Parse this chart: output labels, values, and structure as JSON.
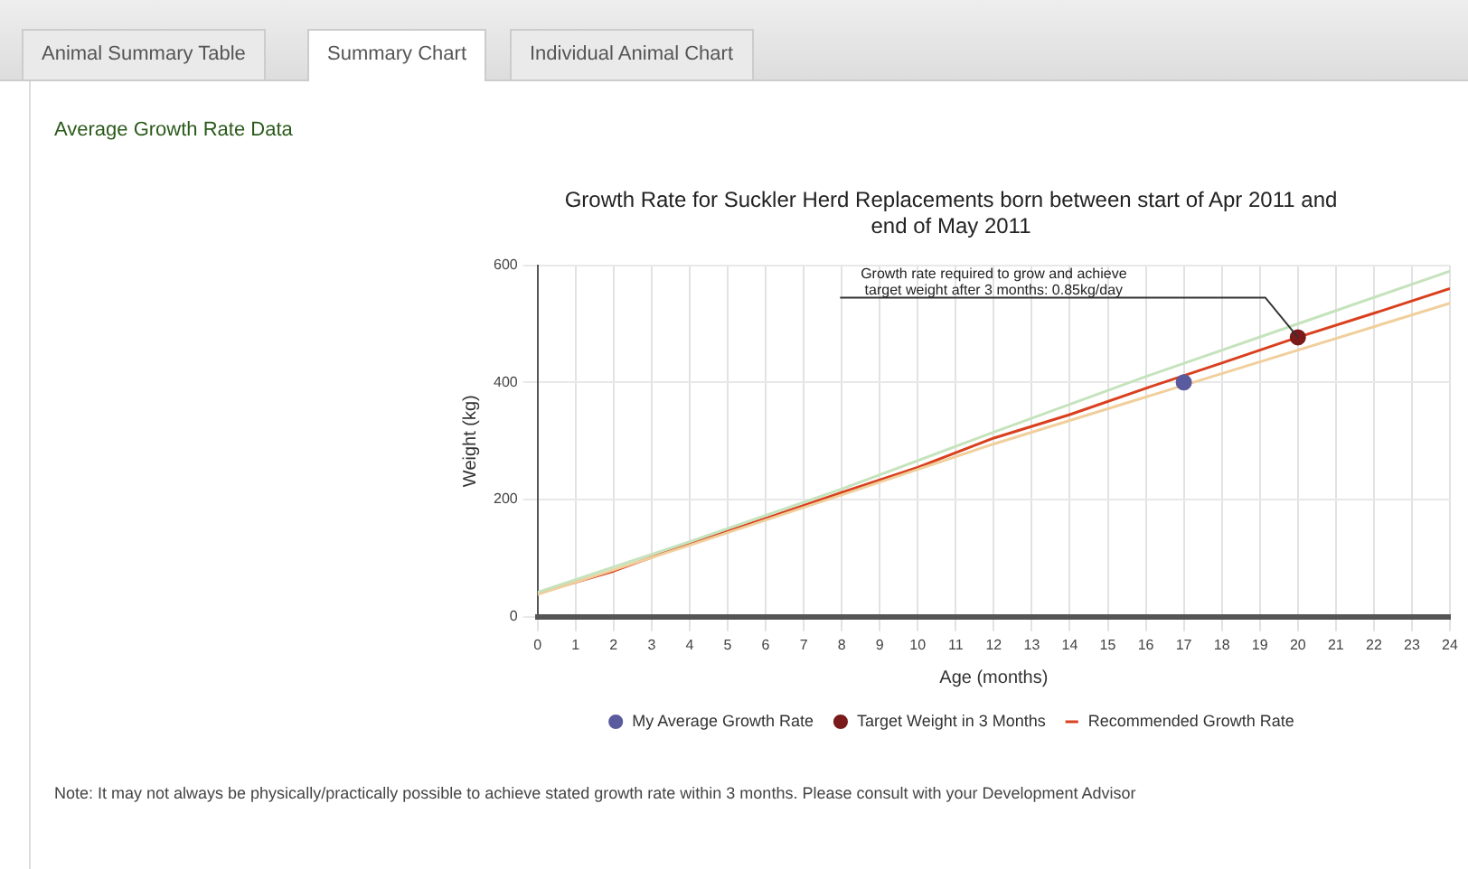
{
  "chart_data": {
    "type": "line",
    "title": [
      "Growth Rate for Suckler Herd Replacements born between start of Apr 2011 and",
      "end of May 2011"
    ],
    "xlabel": "Age (months)",
    "ylabel": "Weight (kg)",
    "xlim": [
      0,
      24
    ],
    "xticks": [
      0,
      1,
      2,
      3,
      4,
      5,
      6,
      7,
      8,
      9,
      10,
      11,
      12,
      13,
      14,
      15,
      16,
      17,
      18,
      19,
      20,
      21,
      22,
      23,
      24
    ],
    "ylim": [
      0,
      600
    ],
    "yticks": [
      0,
      200,
      400,
      600
    ],
    "grid": true,
    "legend": "bottom",
    "series": [
      {
        "type": "scatter",
        "name": "My Average Growth Rate",
        "color": "#5a5a9e",
        "x": [
          17
        ],
        "values": [
          400
        ],
        "marker": "circle"
      },
      {
        "type": "scatter",
        "name": "Target Weight in 3 Months",
        "color": "#7a1a1a",
        "x": [
          20
        ],
        "values": [
          477
        ],
        "marker": "circle"
      },
      {
        "color": "#c5e3bd",
        "x": [
          0,
          4,
          8,
          12,
          16,
          20,
          24
        ],
        "values": [
          42,
          128,
          218,
          315,
          410,
          500,
          590
        ],
        "marker": "none"
      },
      {
        "color": "#f0cf9c",
        "x": [
          0,
          4,
          8,
          12,
          16,
          20,
          24
        ],
        "values": [
          38,
          122,
          208,
          295,
          375,
          455,
          535
        ],
        "marker": "none"
      },
      {
        "name": "Recommended Growth Rate",
        "color": "#d9401e",
        "x": [
          0,
          2,
          4,
          6,
          8,
          10,
          12,
          14,
          16,
          18,
          20,
          22,
          24
        ],
        "values": [
          40,
          78,
          125,
          168,
          212,
          255,
          305,
          345,
          390,
          433,
          477,
          518,
          560
        ],
        "marker": "none"
      }
    ],
    "annotations": [
      {
        "text": "Growth rate required to grow and achieve target weight after 3 months: 0.85kg/day",
        "x": 20,
        "y": 477
      },
      "Animal Summary Table",
      "Summary Chart",
      "Individual Animal Chart",
      "Average Growth Rate Data",
      "Note: It may not always be physically/practically possible to achieve stated growth rate within 3 months. Please consult with your Development Advisor"
    ]
  }
}
